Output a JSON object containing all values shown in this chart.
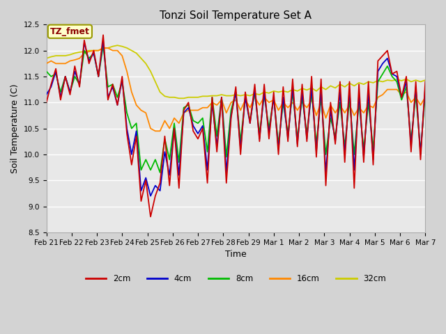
{
  "title": "Tonzi Soil Temperature Set A",
  "xlabel": "Time",
  "ylabel": "Soil Temperature (C)",
  "annotation": "TZ_fmet",
  "ylim": [
    8.5,
    12.5
  ],
  "yticks": [
    8.5,
    9.0,
    9.5,
    10.0,
    10.5,
    11.0,
    11.5,
    12.0,
    12.5
  ],
  "x_labels": [
    "Feb 21",
    "Feb 22",
    "Feb 23",
    "Feb 24",
    "Feb 25",
    "Feb 26",
    "Feb 27",
    "Feb 28",
    "Feb 29",
    "Mar 1",
    "Mar 2",
    "Mar 3",
    "Mar 4",
    "Mar 5",
    "Mar 6",
    "Mar 7"
  ],
  "colors": {
    "2cm": "#cc0000",
    "4cm": "#0000cc",
    "8cm": "#00bb00",
    "16cm": "#ff8800",
    "32cm": "#cccc00"
  },
  "fig_bg": "#d3d3d3",
  "ax_bg": "#e8e8e8",
  "annotation_box_color": "#ffffcc",
  "annotation_text_color": "#8b0000",
  "annotation_edge_color": "#999900",
  "grid_color": "#ffffff",
  "title_fontsize": 11,
  "axis_label_fontsize": 9,
  "tick_fontsize": 7.5,
  "series_2cm": [
    11.0,
    11.35,
    11.65,
    11.05,
    11.5,
    11.15,
    11.7,
    11.3,
    12.2,
    11.75,
    12.0,
    11.5,
    12.3,
    11.05,
    11.35,
    10.95,
    11.5,
    10.4,
    9.8,
    10.35,
    9.1,
    9.5,
    8.8,
    9.2,
    9.45,
    10.35,
    9.4,
    10.5,
    9.35,
    10.85,
    11.0,
    10.45,
    10.3,
    10.5,
    9.45,
    11.1,
    10.05,
    11.1,
    9.45,
    10.7,
    11.3,
    10.0,
    11.2,
    10.6,
    11.35,
    10.25,
    11.35,
    10.3,
    11.2,
    10.0,
    11.3,
    10.25,
    11.45,
    10.15,
    11.35,
    10.25,
    11.5,
    9.95,
    11.45,
    9.4,
    11.0,
    10.2,
    11.4,
    9.85,
    11.4,
    9.35,
    11.35,
    9.85,
    11.4,
    9.8,
    11.8,
    11.9,
    12.0,
    11.55,
    11.6,
    11.1,
    11.5,
    10.05,
    11.4,
    9.9,
    11.4
  ],
  "series_4cm": [
    11.15,
    11.3,
    11.6,
    11.1,
    11.5,
    11.2,
    11.6,
    11.35,
    12.15,
    11.8,
    11.95,
    11.5,
    12.2,
    11.1,
    11.3,
    10.95,
    11.45,
    10.5,
    10.0,
    10.45,
    9.3,
    9.55,
    9.2,
    9.4,
    9.3,
    10.05,
    9.6,
    10.5,
    9.6,
    10.8,
    10.9,
    10.55,
    10.4,
    10.55,
    9.7,
    11.0,
    10.15,
    11.1,
    9.65,
    10.75,
    11.2,
    10.1,
    11.1,
    10.6,
    11.25,
    10.3,
    11.2,
    10.4,
    11.1,
    10.1,
    11.1,
    10.3,
    11.3,
    10.2,
    11.2,
    10.3,
    11.3,
    10.05,
    11.25,
    9.65,
    10.85,
    10.25,
    11.2,
    10.0,
    11.25,
    9.7,
    11.15,
    9.95,
    11.2,
    9.9,
    11.6,
    11.75,
    11.85,
    11.55,
    11.5,
    11.1,
    11.4,
    10.15,
    11.3,
    10.0,
    11.3
  ],
  "series_8cm": [
    11.6,
    11.5,
    11.55,
    11.2,
    11.5,
    11.2,
    11.5,
    11.35,
    12.0,
    11.85,
    11.95,
    11.5,
    12.1,
    11.3,
    11.35,
    11.1,
    11.4,
    10.8,
    10.5,
    10.6,
    9.7,
    9.9,
    9.7,
    9.9,
    9.65,
    10.3,
    9.9,
    10.6,
    9.85,
    10.9,
    10.95,
    10.65,
    10.6,
    10.7,
    10.05,
    11.1,
    10.35,
    11.1,
    9.95,
    10.85,
    11.2,
    10.25,
    11.1,
    10.65,
    11.2,
    10.4,
    11.15,
    10.5,
    11.1,
    10.2,
    11.0,
    10.4,
    11.2,
    10.3,
    11.1,
    10.4,
    11.2,
    10.2,
    11.1,
    10.0,
    10.7,
    10.35,
    11.0,
    10.15,
    11.05,
    10.0,
    11.0,
    10.1,
    11.0,
    10.1,
    11.4,
    11.55,
    11.7,
    11.5,
    11.4,
    11.05,
    11.3,
    10.25,
    11.15,
    10.05,
    11.15
  ],
  "series_16cm": [
    11.75,
    11.8,
    11.75,
    11.75,
    11.75,
    11.8,
    11.82,
    11.85,
    11.95,
    11.98,
    12.0,
    12.0,
    12.05,
    12.05,
    12.0,
    12.0,
    11.9,
    11.6,
    11.2,
    10.95,
    10.85,
    10.8,
    10.5,
    10.45,
    10.45,
    10.65,
    10.5,
    10.7,
    10.6,
    10.8,
    10.85,
    10.85,
    10.85,
    10.9,
    10.9,
    11.0,
    10.95,
    11.05,
    10.8,
    11.0,
    11.05,
    10.85,
    11.05,
    10.9,
    11.1,
    10.95,
    11.1,
    11.0,
    11.05,
    10.85,
    11.0,
    10.9,
    11.0,
    10.85,
    11.0,
    10.9,
    11.05,
    10.75,
    11.0,
    10.7,
    10.95,
    10.8,
    10.95,
    10.8,
    10.95,
    10.75,
    10.9,
    10.8,
    10.95,
    10.9,
    11.1,
    11.15,
    11.25,
    11.25,
    11.25,
    11.15,
    11.2,
    11.0,
    11.1,
    10.95,
    11.1
  ],
  "series_32cm": [
    11.85,
    11.88,
    11.9,
    11.9,
    11.9,
    11.92,
    11.95,
    11.97,
    11.98,
    12.0,
    12.0,
    12.0,
    12.05,
    12.05,
    12.08,
    12.1,
    12.08,
    12.05,
    12.0,
    11.95,
    11.85,
    11.75,
    11.6,
    11.4,
    11.2,
    11.12,
    11.1,
    11.1,
    11.08,
    11.08,
    11.1,
    11.1,
    11.1,
    11.12,
    11.12,
    11.13,
    11.13,
    11.15,
    11.13,
    11.13,
    11.15,
    11.13,
    11.15,
    11.13,
    11.17,
    11.15,
    11.2,
    11.18,
    11.22,
    11.2,
    11.22,
    11.2,
    11.25,
    11.22,
    11.27,
    11.24,
    11.28,
    11.22,
    11.3,
    11.25,
    11.32,
    11.28,
    11.35,
    11.3,
    11.37,
    11.32,
    11.38,
    11.35,
    11.4,
    11.38,
    11.42,
    11.4,
    11.43,
    11.42,
    11.44,
    11.42,
    11.45,
    11.4,
    11.43,
    11.4,
    11.43
  ]
}
